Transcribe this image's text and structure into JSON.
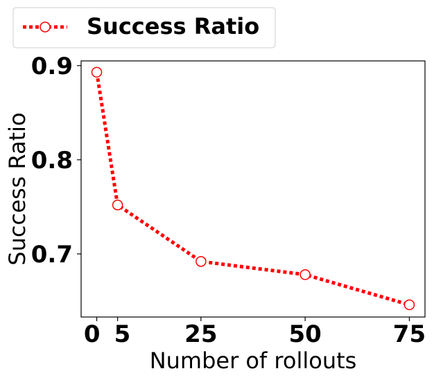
{
  "chart_data": {
    "type": "line",
    "xlabel": "Number of rollouts",
    "ylabel": "Success Ratio",
    "xticks": [
      0,
      5,
      25,
      50,
      75
    ],
    "xtick_labels": [
      "0",
      "5",
      "25",
      "50",
      "75"
    ],
    "yticks": [
      0.7,
      0.8,
      0.9
    ],
    "ytick_labels": [
      "0.7",
      "0.8",
      "0.9"
    ],
    "xlim": [
      -3.75,
      78.75
    ],
    "ylim": [
      0.633,
      0.905
    ],
    "grid": false,
    "legend_position": "top-left, outside plot",
    "series": [
      {
        "name": "Success Ratio",
        "color": "#ff0000",
        "line_style": "dotted",
        "marker": "open-circle",
        "x": [
          0,
          5,
          25,
          50,
          75
        ],
        "y": [
          0.893,
          0.752,
          0.692,
          0.678,
          0.646
        ]
      }
    ]
  }
}
